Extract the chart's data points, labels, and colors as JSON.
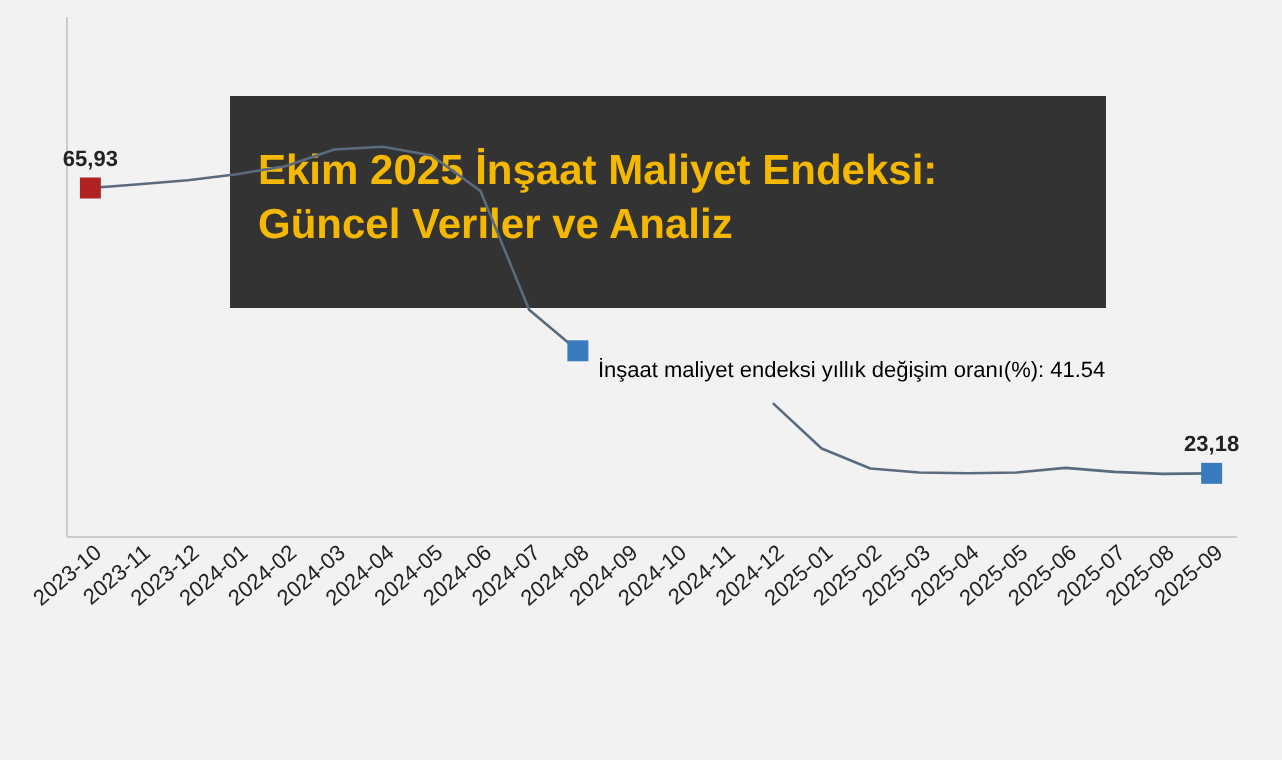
{
  "chart_data": {
    "type": "line",
    "title": "Ekim 2025 İnşaat Maliyet Endeksi: Güncel Veriler ve Analiz",
    "categories": [
      "2023-10",
      "2023-11",
      "2023-12",
      "2024-01",
      "2024-02",
      "2024-03",
      "2024-04",
      "2024-05",
      "2024-06",
      "2024-07",
      "2024-08",
      "2024-09",
      "2024-10",
      "2024-11",
      "2024-12",
      "2025-01",
      "2025-02",
      "2025-03",
      "2025-04",
      "2025-05",
      "2025-06",
      "2025-07",
      "2025-08",
      "2025-09"
    ],
    "series": [
      {
        "color": "#5a6b7d",
        "values": [
          65.93,
          66.5,
          67.1,
          68.0,
          69.2,
          71.7,
          72.1,
          70.8,
          65.5,
          47.7,
          41.54,
          null,
          null,
          null,
          33.7,
          26.9,
          23.9,
          23.3,
          23.2,
          23.3,
          24.0,
          23.4,
          23.1,
          23.18
        ],
        "value_labels": [
          "65,93",
          null,
          null,
          null,
          null,
          null,
          null,
          null,
          null,
          null,
          null,
          null,
          null,
          null,
          null,
          null,
          null,
          null,
          null,
          null,
          null,
          null,
          null,
          "23,18"
        ],
        "colors": [
          "#b22222",
          null,
          null,
          null,
          null,
          null,
          null,
          null,
          null,
          null,
          "#3a7bbf",
          null,
          null,
          null,
          null,
          null,
          null,
          null,
          null,
          null,
          null,
          null,
          null,
          "#3a7bbf"
        ]
      }
    ],
    "annotations": [
      {
        "text": "İnşaat maliyet endeksi yıllık değişim oranı(%): 41.54",
        "x": "2024-08",
        "y": 41.54
      }
    ],
    "grid": false
  }
}
